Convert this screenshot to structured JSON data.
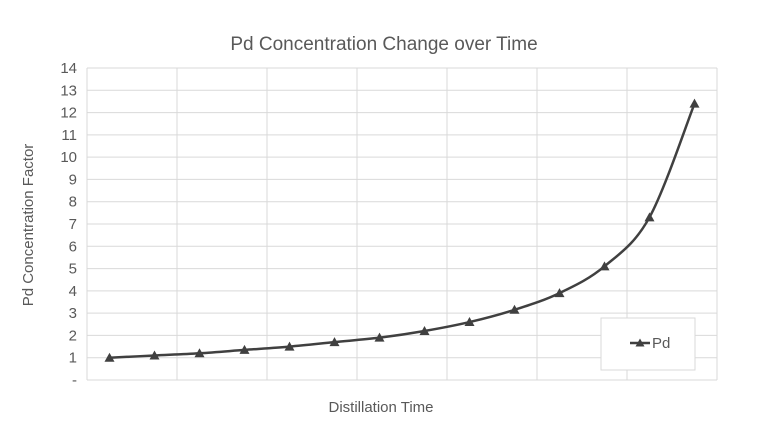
{
  "chart_data": {
    "type": "line",
    "title": "Pd Concentration Change over Time",
    "xlabel": "Distillation Time",
    "ylabel": "Pd Concentration Factor",
    "ylim": [
      0,
      14
    ],
    "y_ticks": [
      "-",
      "1",
      "2",
      "3",
      "4",
      "5",
      "6",
      "7",
      "8",
      "9",
      "10",
      "11",
      "12",
      "13",
      "14"
    ],
    "x_count": 14,
    "grid": true,
    "legend_position": "bottom-right",
    "series": [
      {
        "name": "Pd",
        "color": "#404040",
        "marker": "triangle",
        "x": [
          1,
          2,
          3,
          4,
          5,
          6,
          7,
          8,
          9,
          10,
          11,
          12,
          13,
          14
        ],
        "values": [
          1.0,
          1.1,
          1.2,
          1.35,
          1.5,
          1.7,
          1.9,
          2.2,
          2.6,
          3.15,
          3.9,
          5.1,
          7.3,
          12.4
        ]
      }
    ]
  }
}
